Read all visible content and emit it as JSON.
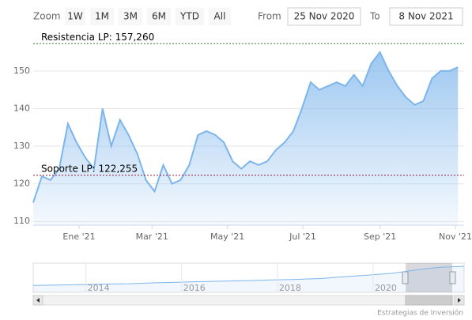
{
  "range_selector": {
    "zoom_label": "Zoom",
    "buttons": [
      "1W",
      "1M",
      "3M",
      "6M",
      "YTD",
      "All"
    ],
    "from_label": "From",
    "from": "25 Nov 2020",
    "to_label": "To",
    "to": "8 Nov 2021"
  },
  "chart_data": {
    "type": "area",
    "color": "#7cb5ec",
    "values": [
      115,
      122,
      121,
      124,
      136,
      131,
      127,
      124,
      140,
      130,
      137,
      133,
      128,
      121,
      118,
      125,
      120,
      121,
      125,
      133,
      134,
      133,
      131,
      126,
      124,
      126,
      125,
      126,
      129,
      131,
      134,
      140,
      147,
      145,
      146,
      147,
      146,
      149,
      146,
      152,
      155,
      150,
      146,
      143,
      141,
      142,
      148,
      150,
      150,
      151
    ],
    "xlim": [
      0,
      49.7
    ],
    "xticks": [
      {
        "value": 5.29,
        "label": "Ene '21"
      },
      {
        "value": 13.7,
        "label": "Mar '21"
      },
      {
        "value": 22.4,
        "label": "May '21"
      },
      {
        "value": 31.1,
        "label": "Jul '21"
      },
      {
        "value": 40,
        "label": "Sep '21"
      },
      {
        "value": 48.7,
        "label": "Nov '21"
      }
    ],
    "ylim": [
      109,
      159
    ],
    "yticks": [
      110,
      120,
      130,
      140,
      150
    ],
    "grid": true,
    "plot_lines": [
      {
        "value": 157.26,
        "label": "Resistencia LP: 157,260",
        "color": "#2e7d32"
      },
      {
        "value": 122.255,
        "label": "Soporte LP: 122,255",
        "color": "#8b1a3a"
      }
    ]
  },
  "navigator": {
    "color": "#7cb5ec",
    "values": [
      40,
      42,
      45,
      48,
      50,
      55,
      58,
      62,
      65,
      68,
      72,
      75,
      80,
      90,
      100,
      110,
      130,
      145,
      151
    ],
    "xlim": [
      0,
      18
    ],
    "ylim": [
      0,
      160
    ],
    "xticks": [
      {
        "value": 2.2,
        "label": "2014"
      },
      {
        "value": 6.2,
        "label": "2016"
      },
      {
        "value": 10.2,
        "label": "2018"
      },
      {
        "value": 14.2,
        "label": "2020"
      }
    ]
  },
  "credits": "Estrategias de Inversión"
}
